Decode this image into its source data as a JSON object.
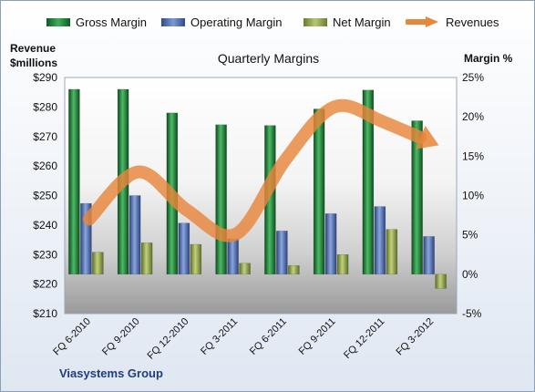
{
  "chart_data": {
    "type": "bar",
    "title": "Quarterly Margins",
    "left_axis_label": "Revenue\n$millions",
    "right_axis_label": "Margin %",
    "footer_label": "Viasystems Group",
    "categories": [
      "FQ 6-2010",
      "FQ 9-2010",
      "FQ 12-2010",
      "FQ 3-2011",
      "FQ 6-2011",
      "FQ 9-2011",
      "FQ 12-2011",
      "FQ 3-2012"
    ],
    "series": [
      {
        "name": "Gross Margin",
        "axis": "right",
        "type": "bar",
        "color": "#1f8a3c",
        "values": [
          23.5,
          23.5,
          20.5,
          19.0,
          18.9,
          21.0,
          23.4,
          19.5
        ]
      },
      {
        "name": "Operating Margin",
        "axis": "right",
        "type": "bar",
        "color": "#4a6cb8",
        "values": [
          9.0,
          10.0,
          6.5,
          4.5,
          5.5,
          7.7,
          8.6,
          4.8
        ]
      },
      {
        "name": "Net Margin",
        "axis": "right",
        "type": "bar",
        "color": "#94aa48",
        "values": [
          2.8,
          4.0,
          3.8,
          1.4,
          1.1,
          2.5,
          5.7,
          -1.8
        ]
      },
      {
        "name": "Revenues",
        "axis": "left",
        "type": "line",
        "color": "#e8863a",
        "values": [
          242,
          258,
          245,
          237,
          262,
          280,
          275,
          268
        ]
      }
    ],
    "y_left": {
      "min": 210,
      "max": 290,
      "ticks": [
        "$210",
        "$220",
        "$230",
        "$240",
        "$250",
        "$260",
        "$270",
        "$280",
        "$290"
      ]
    },
    "y_right": {
      "min": -5,
      "max": 25,
      "ticks": [
        "-5%",
        "0%",
        "5%",
        "10%",
        "15%",
        "20%",
        "25%"
      ]
    },
    "legend_position": "top",
    "grid": false
  }
}
